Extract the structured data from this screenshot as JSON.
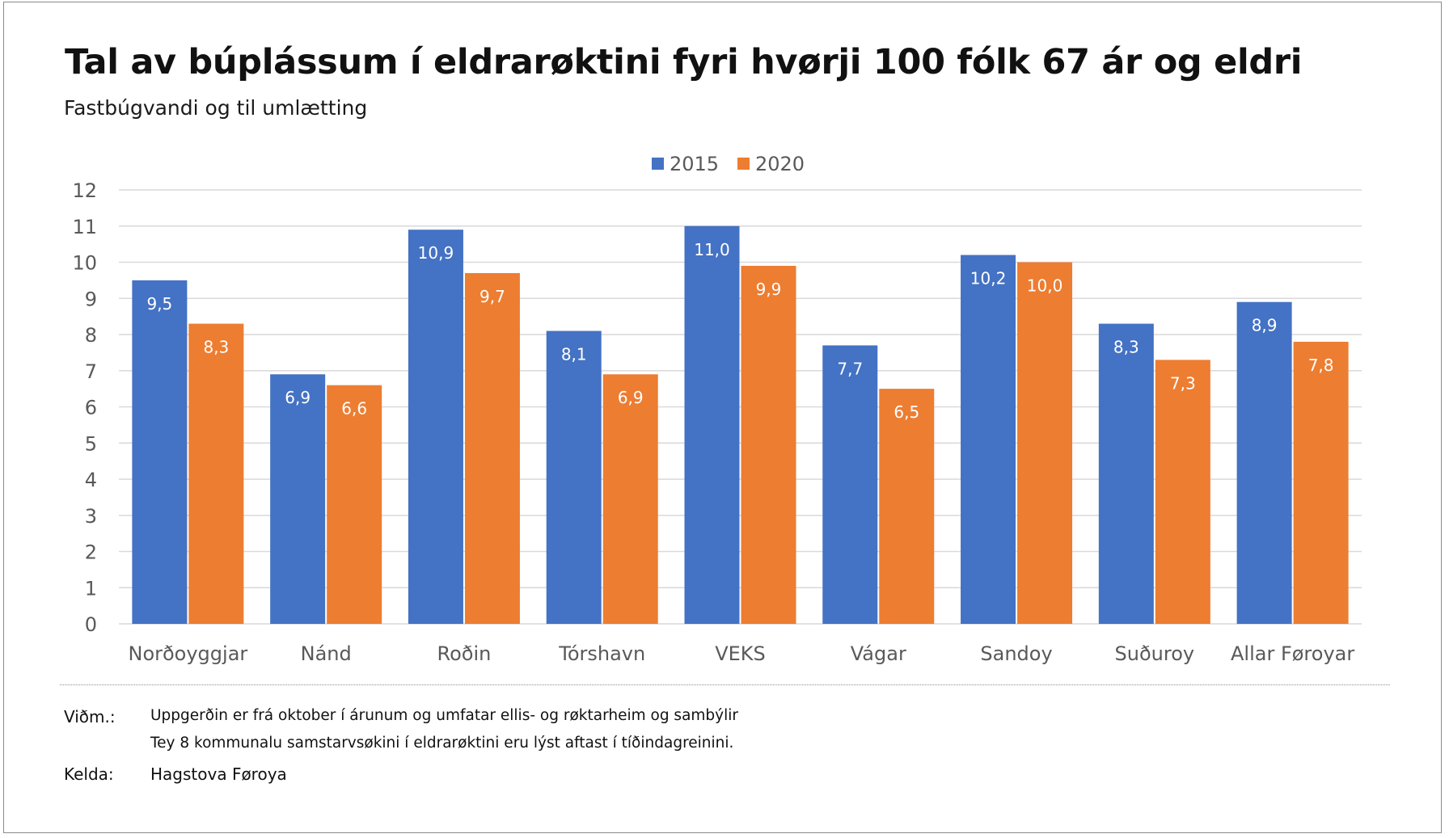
{
  "header": {
    "title": "Tal av búplássum í eldrarøktini fyri hvørji 100 fólk 67 ár og eldri",
    "subtitle": "Fastbúgvandi og til umlætting"
  },
  "chart_data": {
    "type": "bar",
    "title": "Tal av búplássum í eldrarøktini fyri hvørji 100 fólk 67 ár og eldri",
    "subtitle": "Fastbúgvandi og til umlætting",
    "xlabel": "",
    "ylabel": "",
    "ylim": [
      0,
      12
    ],
    "yticks": [
      0,
      1,
      2,
      3,
      4,
      5,
      6,
      7,
      8,
      9,
      10,
      11,
      12
    ],
    "grid": true,
    "legend_position": "top-center",
    "categories": [
      "Norðoyggjar",
      "Nánd",
      "Roðin",
      "Tórshavn",
      "VEKS",
      "Vágar",
      "Sandoy",
      "Suðuroy",
      "Allar Føroyar"
    ],
    "series": [
      {
        "name": "2015",
        "color": "#4472C4",
        "values": [
          9.5,
          6.9,
          10.9,
          8.1,
          11.0,
          7.7,
          10.2,
          8.3,
          8.9
        ],
        "labels": [
          "9,5",
          "6,9",
          "10,9",
          "8,1",
          "11,0",
          "7,7",
          "10,2",
          "8,3",
          "8,9"
        ]
      },
      {
        "name": "2020",
        "color": "#ED7D31",
        "values": [
          8.3,
          6.6,
          9.7,
          6.9,
          9.9,
          6.5,
          10.0,
          7.3,
          7.8
        ],
        "labels": [
          "8,3",
          "6,6",
          "9,7",
          "6,9",
          "9,9",
          "6,5",
          "10,0",
          "7,3",
          "7,8"
        ]
      }
    ]
  },
  "notes": {
    "label": "Viðm.:",
    "lines": [
      "Uppgerðin er frá oktober í árunum og umfatar ellis- og røktarheim og sambýlir",
      "Tey 8 kommunalu samstarvsøkini í eldrarøktini eru lýst aftast í tíðindagreinini."
    ]
  },
  "source": {
    "label": "Kelda:",
    "text": "Hagstova Føroya"
  },
  "colors": {
    "gridline": "#d9d9d9",
    "axis_text": "#595959",
    "bar_label": "#ffffff"
  }
}
